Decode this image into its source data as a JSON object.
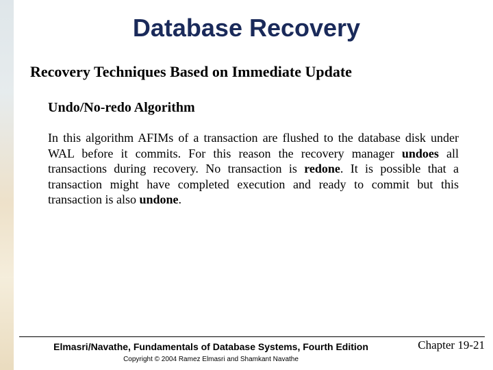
{
  "title": "Database Recovery",
  "section_heading": "Recovery Techniques Based on Immediate Update",
  "subheading": "Undo/No-redo Algorithm",
  "body": {
    "p1a": "In this algorithm AFIMs of a transaction are flushed to the database disk under WAL before it commits.  For this reason the recovery manager ",
    "p1b": "undoes",
    "p1c": " all transactions during recovery.  No transaction is ",
    "p1d": "redone",
    "p1e": ".  It is possible that a transaction might have completed execution and ready to commit but this transaction is also ",
    "p1f": "undone",
    "p1g": "."
  },
  "footer": {
    "book": "Elmasri/Navathe, Fundamentals of Database Systems, Fourth Edition",
    "copyright": "Copyright © 2004 Ramez Elmasri and Shamkant Navathe",
    "chapter": "Chapter 19-21"
  },
  "colors": {
    "title_color": "#1a2a5a",
    "text_color": "#000000",
    "background": "#ffffff"
  }
}
